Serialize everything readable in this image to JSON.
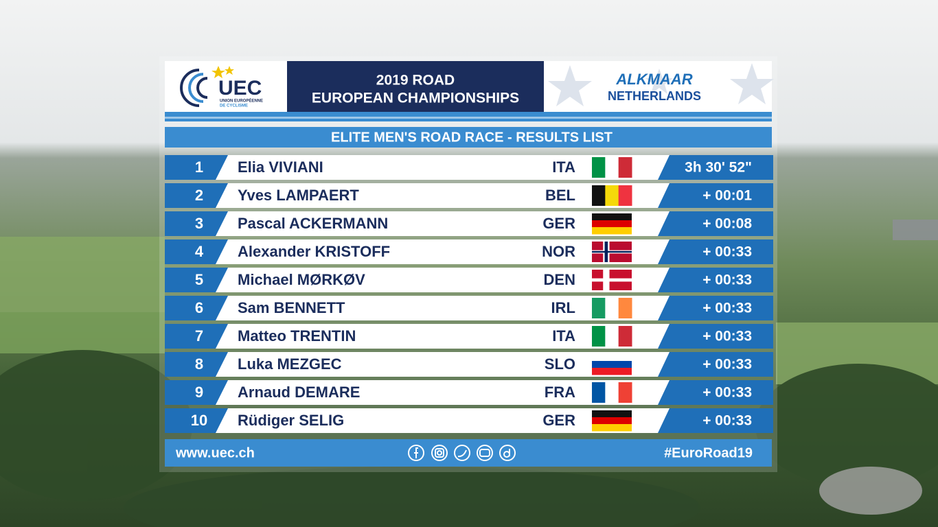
{
  "header": {
    "logo": "UEC",
    "logo_subtitle": [
      "UNION EUROPÉENNE",
      "DE CYCLISME"
    ],
    "title": [
      "2019 ROAD",
      "EUROPEAN CHAMPIONSHIPS"
    ],
    "location": {
      "city": "ALKMAAR",
      "country": "NETHERLANDS"
    }
  },
  "subtitle": "ELITE MEN'S ROAD RACE - RESULTS LIST",
  "table": {
    "rows": [
      [
        1,
        "Elia VIVIANI",
        "ITA",
        "3h 30' 52\""
      ],
      [
        2,
        "Yves LAMPAERT",
        "BEL",
        "+ 00:01"
      ],
      [
        3,
        "Pascal ACKERMANN",
        "GER",
        "+ 00:08"
      ],
      [
        4,
        "Alexander KRISTOFF",
        "NOR",
        "+ 00:33"
      ],
      [
        5,
        "Michael MØRKØV",
        "DEN",
        "+ 00:33"
      ],
      [
        6,
        "Sam BENNETT",
        "IRL",
        "+ 00:33"
      ],
      [
        7,
        "Matteo TRENTIN",
        "ITA",
        "+ 00:33"
      ],
      [
        8,
        "Luka MEZGEC",
        "SLO",
        "+ 00:33"
      ],
      [
        9,
        "Arnaud DEMARE",
        "FRA",
        "+ 00:33"
      ],
      [
        10,
        "Rüdiger SELIG",
        "GER",
        "+ 00:33"
      ]
    ]
  },
  "footer": {
    "website": "www.uec.ch",
    "hashtag": "#EuroRoad19"
  }
}
